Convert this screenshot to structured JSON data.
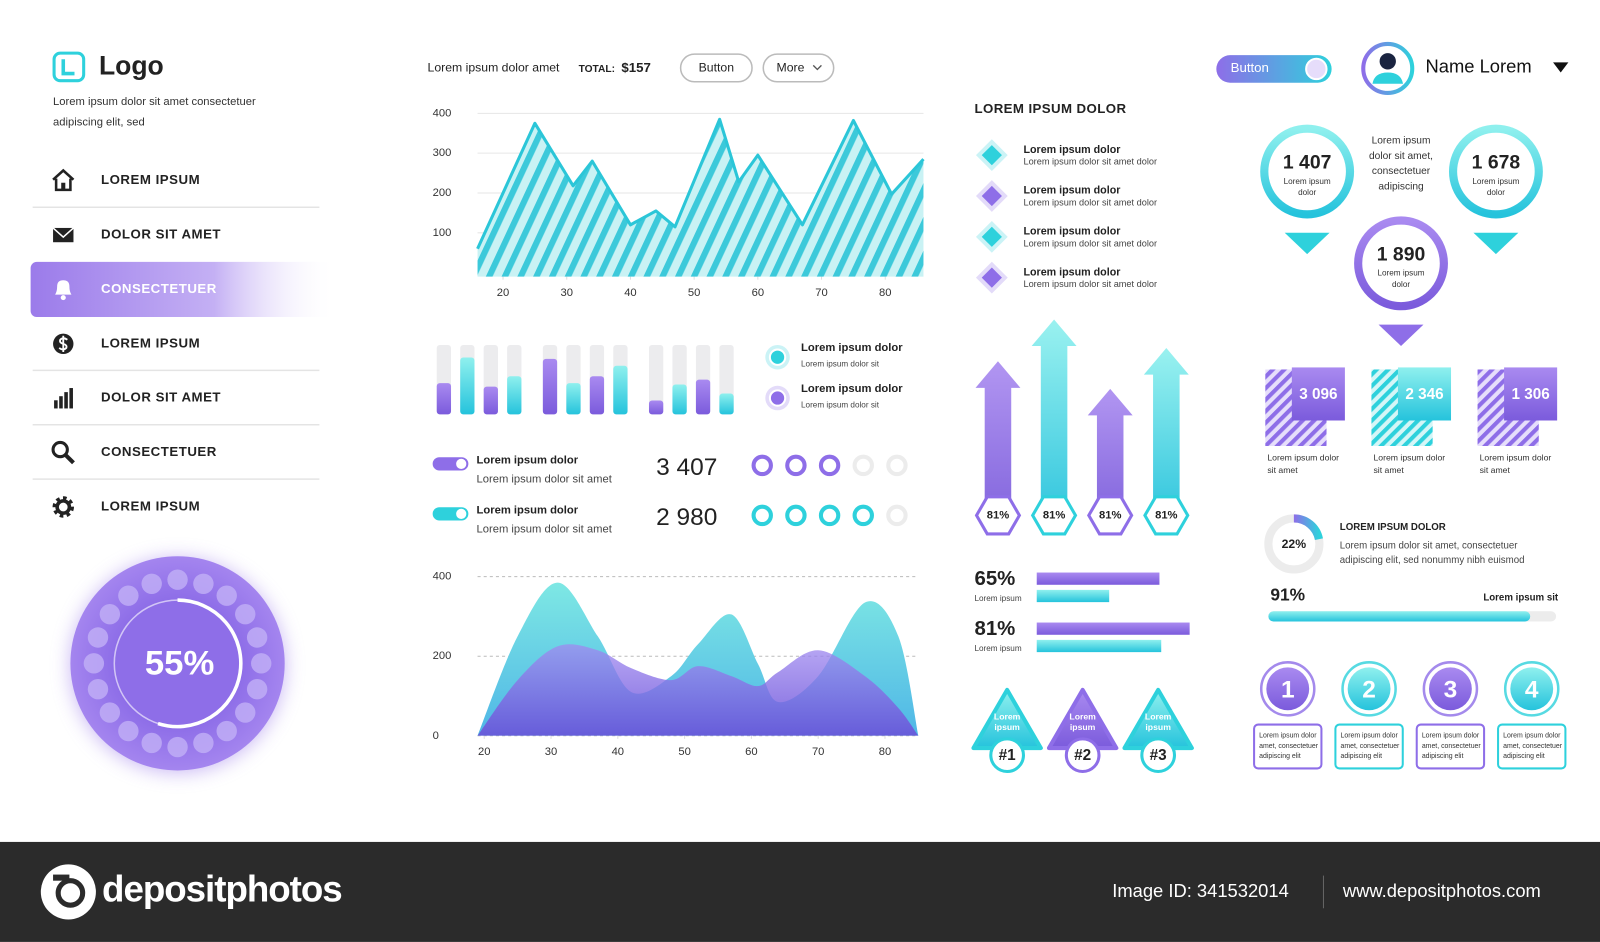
{
  "sidebar": {
    "logo": "Logo",
    "tagline": [
      "Lorem ipsum dolor sit amet consectetuer",
      "adipiscing elit, sed"
    ],
    "menu": [
      "LOREM IPSUM",
      "DOLOR SIT AMET",
      "CONSECTETUER",
      "LOREM IPSUM",
      "DOLOR SIT AMET",
      "CONSECTETUER",
      "LOREM IPSUM"
    ],
    "active": 2,
    "gauge": {
      "value": 55,
      "label": "55%"
    }
  },
  "header": {
    "text": "Lorem ipsum dolor amet",
    "total_label": "TOTAL:",
    "total": "$157",
    "buttons": [
      "Button",
      "More"
    ],
    "toggle": "Button",
    "user": "Name Lorem"
  },
  "chart_data": [
    {
      "type": "line",
      "color": "#2bc6d8",
      "x": [
        16,
        25,
        31,
        34,
        40,
        44,
        47,
        54,
        57,
        60,
        67,
        75,
        81,
        86
      ],
      "values": [
        60,
        375,
        218,
        280,
        120,
        155,
        115,
        385,
        228,
        295,
        120,
        382,
        197,
        285
      ],
      "xlim": [
        16,
        86
      ],
      "xticks": [
        20,
        30,
        40,
        50,
        60,
        70,
        80
      ],
      "ylim": [
        -10,
        400
      ],
      "yticks": [
        100,
        200,
        300,
        400
      ],
      "grid": true
    },
    {
      "type": "bar",
      "categories": [
        null,
        null,
        null,
        null,
        null,
        null
      ],
      "ylim": [
        0,
        100
      ],
      "series": [
        {
          "name": "Lorem ipsum dolor",
          "note": "Lorem ipsum dolor sit",
          "color": "#8e6ee8",
          "values": [
            45,
            40,
            80,
            55,
            20,
            50
          ]
        },
        {
          "name": "Lorem ipsum dolor",
          "note": "Lorem ipsum dolor sit",
          "color": "#2ed1dc",
          "values": [
            82,
            55,
            45,
            70,
            43,
            30
          ]
        }
      ]
    },
    {
      "type": "area",
      "x": [
        19,
        25,
        31,
        37,
        42,
        48,
        52,
        57,
        61,
        64,
        70,
        77,
        82,
        85
      ],
      "series": [
        {
          "color": "#3fd9dd",
          "values": [
            0,
            250,
            385,
            250,
            110,
            150,
            230,
            305,
            180,
            85,
            150,
            335,
            250,
            0
          ]
        },
        {
          "color": "#8a6ae6",
          "values": [
            0,
            140,
            225,
            215,
            170,
            140,
            175,
            150,
            125,
            160,
            215,
            150,
            70,
            0
          ]
        }
      ],
      "xlim": [
        19,
        85
      ],
      "xticks": [
        20,
        30,
        40,
        50,
        60,
        70,
        80
      ],
      "ylim": [
        0,
        400
      ],
      "yticks": [
        0,
        200,
        400
      ],
      "grid": true
    }
  ],
  "stats": [
    {
      "title": "Lorem ipsum dolor",
      "text": "Lorem ipsum dolor sit amet",
      "value": "3 407",
      "rating": 3,
      "rating_max": 5,
      "color": "#8e6ee8"
    },
    {
      "title": "Lorem ipsum dolor",
      "text": "Lorem ipsum dolor sit amet",
      "value": "2 980",
      "rating": 4,
      "rating_max": 5,
      "color": "#2ed1dc"
    }
  ],
  "list": {
    "title": "LOREM IPSUM DOLOR",
    "items": [
      {
        "title": "Lorem ipsum dolor",
        "text": "Lorem ipsum dolor sit amet dolor"
      },
      {
        "title": "Lorem ipsum dolor",
        "text": "Lorem ipsum dolor sit amet dolor"
      },
      {
        "title": "Lorem ipsum dolor",
        "text": "Lorem ipsum dolor sit amet dolor"
      },
      {
        "title": "Lorem ipsum dolor",
        "text": "Lorem ipsum dolor sit amet dolor"
      }
    ]
  },
  "arrows": [
    {
      "value": 81,
      "label": "81%"
    },
    {
      "value": 81,
      "label": "81%"
    },
    {
      "value": 81,
      "label": "81%"
    },
    {
      "value": 81,
      "label": "81%"
    }
  ],
  "hbars": [
    {
      "value": 65,
      "label": "65%",
      "text": "Lorem ipsum"
    },
    {
      "value": 81,
      "label": "81%",
      "text": "Lorem ipsum"
    }
  ],
  "badges": [
    {
      "text": [
        "Lorem",
        "ipsum"
      ],
      "label": "#1"
    },
    {
      "text": [
        "Lorem",
        "ipsum"
      ],
      "label": "#2"
    },
    {
      "text": [
        "Lorem",
        "ipsum"
      ],
      "label": "#3"
    }
  ],
  "pins": [
    {
      "value": "1 407",
      "text": [
        "Lorem ipsum",
        "dolor"
      ]
    },
    {
      "value": "1 678",
      "text": [
        "Lorem ipsum",
        "dolor"
      ]
    },
    {
      "value": "1 890",
      "text": [
        "Lorem ipsum",
        "dolor"
      ]
    }
  ],
  "pins_note": [
    "Lorem ipsum",
    "dolor sit amet,",
    "consectetuer",
    "adipiscing"
  ],
  "tiles": [
    {
      "value": "3 096",
      "text": [
        "Lorem ipsum dolor",
        "sit amet"
      ]
    },
    {
      "value": "2 346",
      "text": [
        "Lorem ipsum dolor",
        "sit amet"
      ]
    },
    {
      "value": "1 306",
      "text": [
        "Lorem ipsum dolor",
        "sit amet"
      ]
    }
  ],
  "donut": {
    "value": 22,
    "label": "22%",
    "title": "LOREM IPSUM DOLOR",
    "text": [
      "Lorem ipsum dolor sit amet, consectetuer",
      "adipiscing elit, sed nonummy nibh euismod"
    ]
  },
  "progress": {
    "value": 91,
    "label": "91%",
    "text": "Lorem ipsum sit"
  },
  "steps": [
    {
      "label": 1,
      "text": [
        "Lorem ipsum dolor",
        "amet, consectetuer",
        "adipiscing elit"
      ]
    },
    {
      "label": 2,
      "text": [
        "Lorem ipsum dolor",
        "amet, consectetuer",
        "adipiscing elit"
      ]
    },
    {
      "label": 3,
      "text": [
        "Lorem ipsum dolor",
        "amet, consectetuer",
        "adipiscing elit"
      ]
    },
    {
      "label": 4,
      "text": [
        "Lorem ipsum dolor",
        "amet, consectetuer",
        "adipiscing elit"
      ]
    }
  ],
  "footer": {
    "brand": "depositphotos",
    "image_id": "Image ID: 341532014",
    "url": "www.depositphotos.com"
  }
}
